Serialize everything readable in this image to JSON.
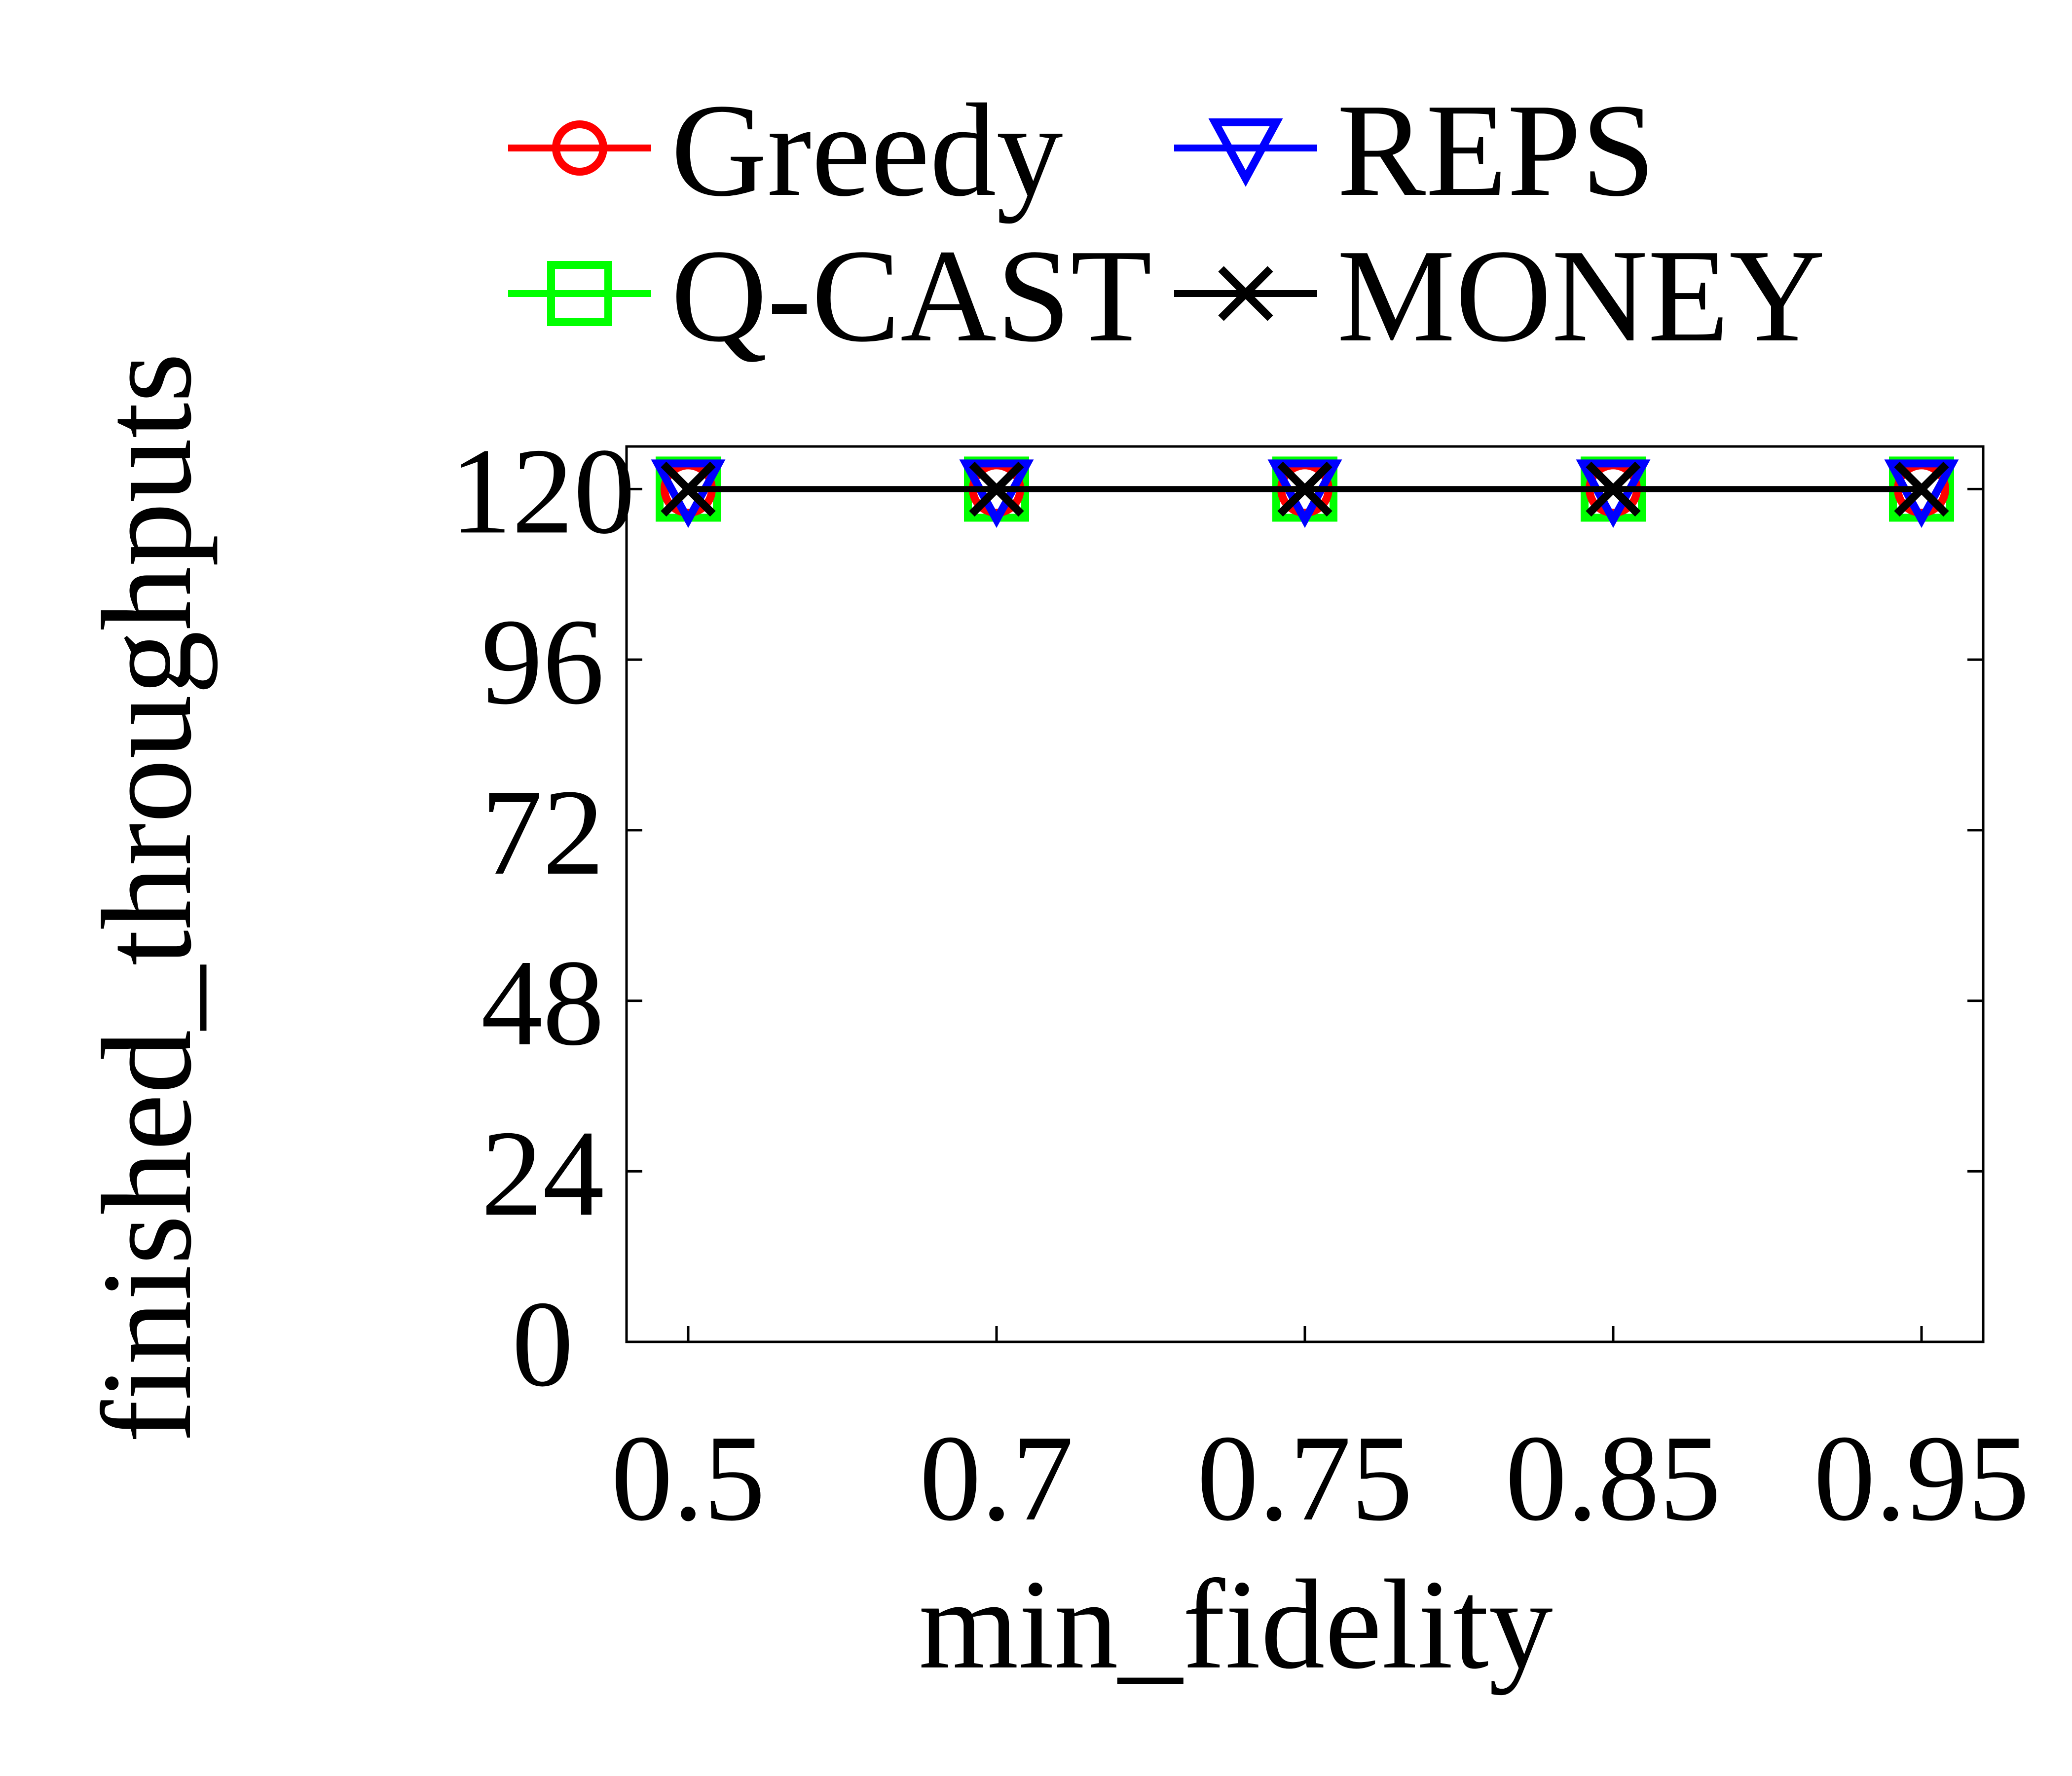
{
  "chart_data": {
    "type": "line",
    "title": "",
    "xlabel": "min_fidelity",
    "ylabel": "finished_throughputs",
    "categories": [
      "0.5",
      "0.7",
      "0.75",
      "0.85",
      "0.95"
    ],
    "ylim": [
      0,
      126
    ],
    "yticks": [
      "0",
      "24",
      "48",
      "72",
      "96",
      "120"
    ],
    "grid": false,
    "legend_position": "top",
    "series": [
      {
        "name": "Greedy",
        "values": [
          120,
          120,
          120,
          120,
          120
        ],
        "color": "#ff0000",
        "marker": "circle"
      },
      {
        "name": "REPS",
        "values": [
          120,
          120,
          120,
          120,
          120
        ],
        "color": "#0000ff",
        "marker": "triangle-down"
      },
      {
        "name": "Q-CAST",
        "values": [
          120,
          120,
          120,
          120,
          120
        ],
        "color": "#00ff00",
        "marker": "square"
      },
      {
        "name": "MONEY",
        "values": [
          120,
          120,
          120,
          120,
          120
        ],
        "color": "#000000",
        "marker": "x"
      }
    ]
  }
}
